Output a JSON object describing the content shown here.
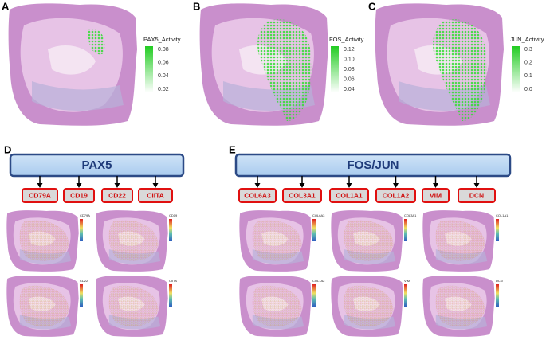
{
  "panels": [
    {
      "letter": "A",
      "legend_title": "PAX5_Activity",
      "legend_ticks": [
        "0.08",
        "0.06",
        "0.04",
        "0.02"
      ]
    },
    {
      "letter": "B",
      "legend_title": "FOS_Activity",
      "legend_ticks": [
        "0.12",
        "0.10",
        "0.08",
        "0.06",
        "0.04"
      ]
    },
    {
      "letter": "C",
      "legend_title": "JUN_Activity",
      "legend_ticks": [
        "0.3",
        "0.2",
        "0.1",
        "0.0"
      ]
    }
  ],
  "network_d": {
    "letter": "D",
    "regulator": "PAX5",
    "targets": [
      "CD79A",
      "CD19",
      "CD22",
      "CIITA"
    ]
  },
  "network_e": {
    "letter": "E",
    "regulator": "FOS/JUN",
    "targets": [
      "COL6A3",
      "COL3A1",
      "COL1A1",
      "COL1A2",
      "VIM",
      "DCN"
    ]
  }
}
